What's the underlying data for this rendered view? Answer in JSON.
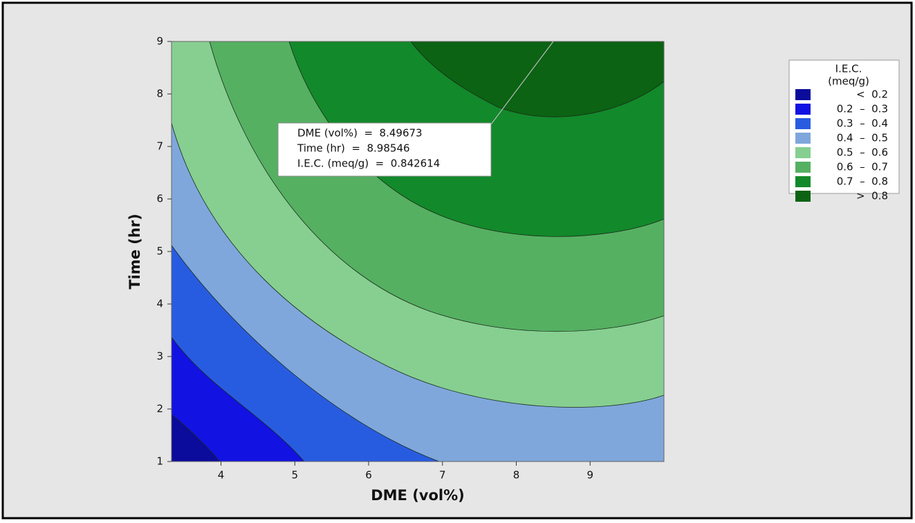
{
  "chart_data": {
    "type": "contour",
    "x_label": "DME (vol%)",
    "y_label": "Time (hr)",
    "xlim": [
      3.33,
      10
    ],
    "xticks": [
      4,
      5,
      6,
      7,
      8,
      9
    ],
    "ylim": [
      1,
      9
    ],
    "yticks": [
      1,
      2,
      3,
      4,
      5,
      6,
      7,
      8,
      9
    ],
    "legend_title": [
      "I.E.C.",
      "(meq/g)"
    ],
    "levels": [
      {
        "label": "<  0.2",
        "color": "#0b0b9c"
      },
      {
        "label": "0.2  –  0.3",
        "color": "#1212e2"
      },
      {
        "label": "0.3  –  0.4",
        "color": "#285ce0"
      },
      {
        "label": "0.4  –  0.5",
        "color": "#7fa7db"
      },
      {
        "label": "0.5  –  0.6",
        "color": "#86cf90"
      },
      {
        "label": "0.6  –  0.7",
        "color": "#55b062"
      },
      {
        "label": "0.7  –  0.8",
        "color": "#12892a"
      },
      {
        "label": ">  0.8",
        "color": "#0b6313"
      }
    ],
    "annotation": [
      "DME (vol%)  =  8.49673",
      "Time (hr)  =  8.98546",
      "I.E.C. (meq/g)  =  0.842614"
    ]
  }
}
